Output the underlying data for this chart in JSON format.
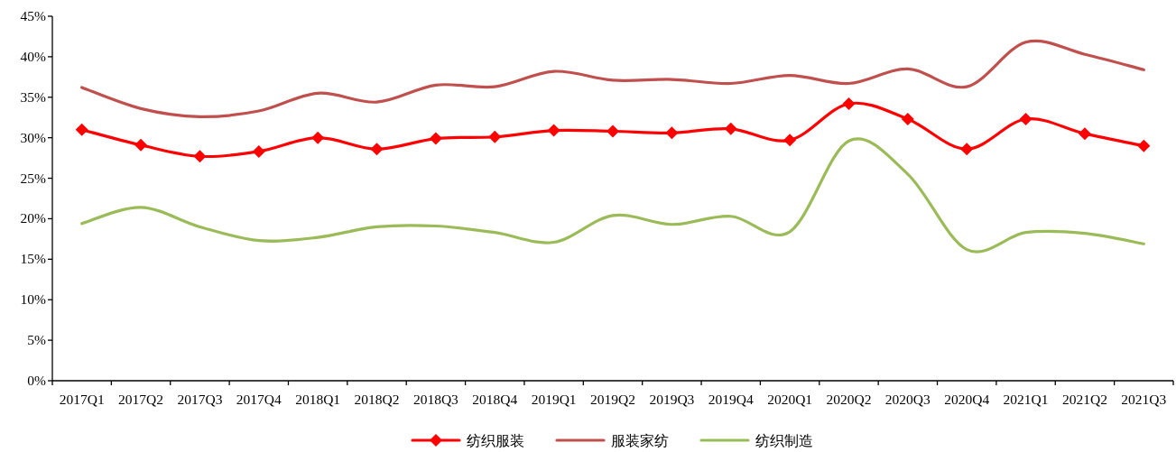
{
  "chart_data": {
    "type": "line",
    "categories": [
      "2017Q1",
      "2017Q2",
      "2017Q3",
      "2017Q4",
      "2018Q1",
      "2018Q2",
      "2018Q3",
      "2018Q4",
      "2019Q1",
      "2019Q2",
      "2019Q3",
      "2019Q4",
      "2020Q1",
      "2020Q2",
      "2020Q3",
      "2020Q4",
      "2021Q1",
      "2021Q2",
      "2021Q3"
    ],
    "series": [
      {
        "name": "纺织服装",
        "color": "#ff0000",
        "marker": "diamond",
        "values": [
          31.0,
          29.1,
          27.7,
          28.3,
          30.0,
          28.6,
          29.9,
          30.1,
          30.9,
          30.8,
          30.6,
          31.1,
          29.7,
          34.2,
          32.3,
          28.6,
          32.3,
          30.5,
          29.0
        ]
      },
      {
        "name": "服装家纺",
        "color": "#c0504d",
        "values": [
          36.2,
          33.6,
          32.6,
          33.3,
          35.5,
          34.4,
          36.5,
          36.3,
          38.2,
          37.1,
          37.2,
          36.7,
          37.7,
          36.7,
          38.5,
          36.3,
          41.8,
          40.3,
          38.4
        ]
      },
      {
        "name": "纺织制造",
        "color": "#9bbb59",
        "values": [
          19.4,
          21.4,
          19.0,
          17.3,
          17.7,
          19.0,
          19.1,
          18.3,
          17.1,
          20.4,
          19.3,
          20.3,
          18.4,
          29.6,
          25.5,
          16.2,
          18.3,
          18.2,
          16.9
        ]
      }
    ],
    "ylim": [
      0,
      45
    ],
    "yticks": [
      {
        "value": 0,
        "label": "0%"
      },
      {
        "value": 5,
        "label": "5%"
      },
      {
        "value": 10,
        "label": "10%"
      },
      {
        "value": 15,
        "label": "15%"
      },
      {
        "value": 20,
        "label": "20%"
      },
      {
        "value": 25,
        "label": "25%"
      },
      {
        "value": 30,
        "label": "30%"
      },
      {
        "value": 35,
        "label": "35%"
      },
      {
        "value": 40,
        "label": "40%"
      },
      {
        "value": 45,
        "label": "45%"
      }
    ],
    "legend": "bottom",
    "marker": "none",
    "line_style": "solid"
  }
}
